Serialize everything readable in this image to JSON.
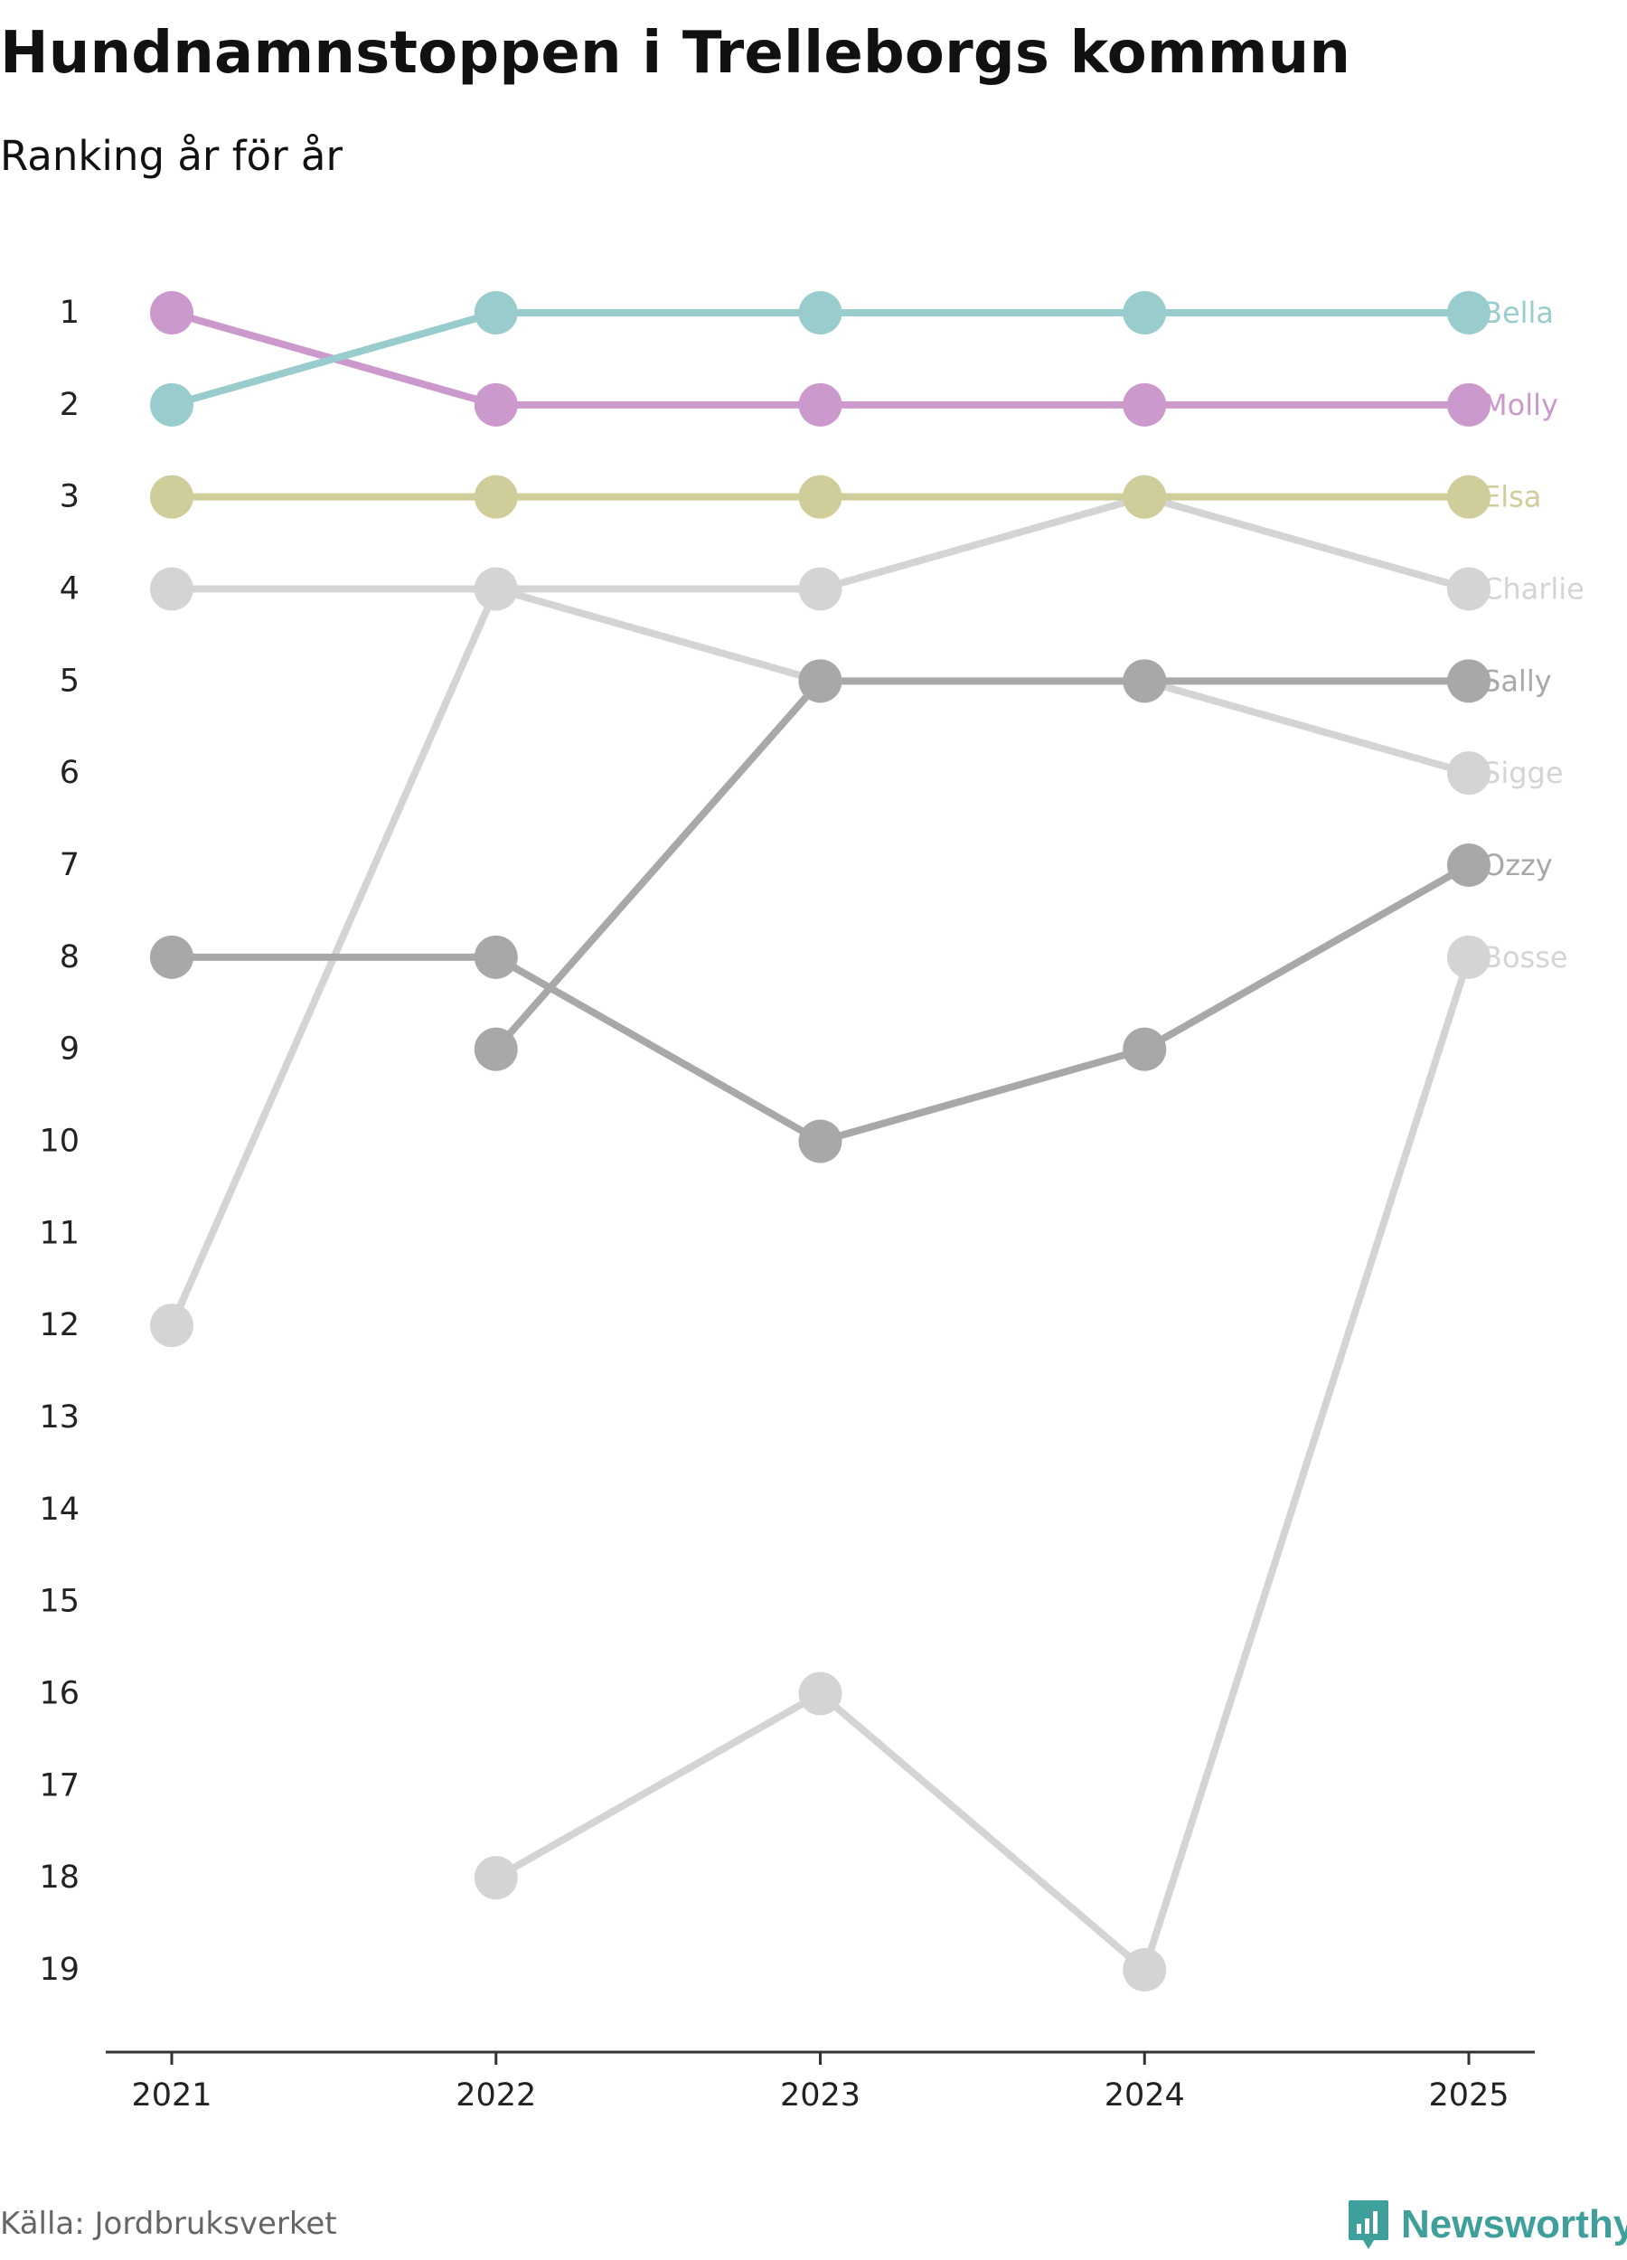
{
  "header": {
    "title": "Hundnamnstoppen i Trelleborgs kommun",
    "subtitle": "Ranking år för år"
  },
  "footer": {
    "source": "Källa: Jordbruksverket",
    "brand": "Newsworthy",
    "brand_icon": "newsworthy-logo-icon"
  },
  "colors": {
    "axis": "#333333",
    "tick_text": "#222222",
    "brand": "#3f9f9a"
  },
  "chart_data": {
    "type": "line",
    "subtype": "bump",
    "title": "Hundnamnstoppen i Trelleborgs kommun",
    "subtitle": "Ranking år för år",
    "xlabel": "",
    "ylabel": "",
    "x": [
      "2021",
      "2022",
      "2023",
      "2024",
      "2025"
    ],
    "y_ticks": [
      1,
      2,
      3,
      4,
      5,
      6,
      7,
      8,
      9,
      10,
      11,
      12,
      13,
      14,
      15,
      16,
      17,
      18,
      19
    ],
    "ylim": [
      1,
      19
    ],
    "y_reversed": true,
    "grid": false,
    "legend": "direct labels at right end",
    "series": [
      {
        "name": "Charlie",
        "color": "#d4d4d4",
        "values": [
          4,
          4,
          4,
          3,
          4
        ]
      },
      {
        "name": "Sigge",
        "color": "#d4d4d4",
        "values": [
          12,
          4,
          5,
          5,
          6
        ]
      },
      {
        "name": "Bosse",
        "color": "#d4d4d4",
        "values": [
          null,
          18,
          16,
          19,
          8
        ]
      },
      {
        "name": "Sally",
        "color": "#a8a8a8",
        "values": [
          null,
          9,
          5,
          5,
          5
        ]
      },
      {
        "name": "Ozzy",
        "color": "#a8a8a8",
        "values": [
          8,
          8,
          10,
          9,
          7
        ]
      },
      {
        "name": "Elsa",
        "color": "#cfcd9a",
        "values": [
          3,
          3,
          3,
          3,
          3
        ]
      },
      {
        "name": "Molly",
        "color": "#cc99cc",
        "values": [
          1,
          2,
          2,
          2,
          2
        ]
      },
      {
        "name": "Bella",
        "color": "#99cccc",
        "values": [
          2,
          1,
          1,
          1,
          1
        ]
      }
    ]
  }
}
